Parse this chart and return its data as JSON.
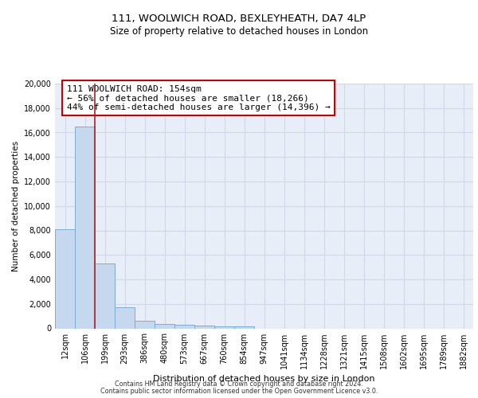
{
  "title_line1": "111, WOOLWICH ROAD, BEXLEYHEATH, DA7 4LP",
  "title_line2": "Size of property relative to detached houses in London",
  "xlabel": "Distribution of detached houses by size in London",
  "ylabel": "Number of detached properties",
  "footnote_line1": "Contains HM Land Registry data © Crown copyright and database right 2024.",
  "footnote_line2": "Contains public sector information licensed under the Open Government Licence v3.0.",
  "annotation_line1": "111 WOOLWICH ROAD: 154sqm",
  "annotation_line2": "← 56% of detached houses are smaller (18,266)",
  "annotation_line3": "44% of semi-detached houses are larger (14,396) →",
  "bar_color": "#c5d8ee",
  "bar_edge_color": "#7aaed4",
  "property_line_color": "#aa2222",
  "background_color": "#e8eef8",
  "grid_color": "#d0d8e8",
  "categories": [
    "12sqm",
    "106sqm",
    "199sqm",
    "293sqm",
    "386sqm",
    "480sqm",
    "573sqm",
    "667sqm",
    "760sqm",
    "854sqm",
    "947sqm",
    "1041sqm",
    "1134sqm",
    "1228sqm",
    "1321sqm",
    "1415sqm",
    "1508sqm",
    "1602sqm",
    "1695sqm",
    "1789sqm",
    "1882sqm"
  ],
  "values": [
    8100,
    16500,
    5300,
    1750,
    650,
    380,
    270,
    200,
    170,
    140,
    0,
    0,
    0,
    0,
    0,
    0,
    0,
    0,
    0,
    0,
    0
  ],
  "ylim": [
    0,
    20000
  ],
  "yticks": [
    0,
    2000,
    4000,
    6000,
    8000,
    10000,
    12000,
    14000,
    16000,
    18000,
    20000
  ],
  "property_line_x": 1.5,
  "prop_size": "154sqm"
}
